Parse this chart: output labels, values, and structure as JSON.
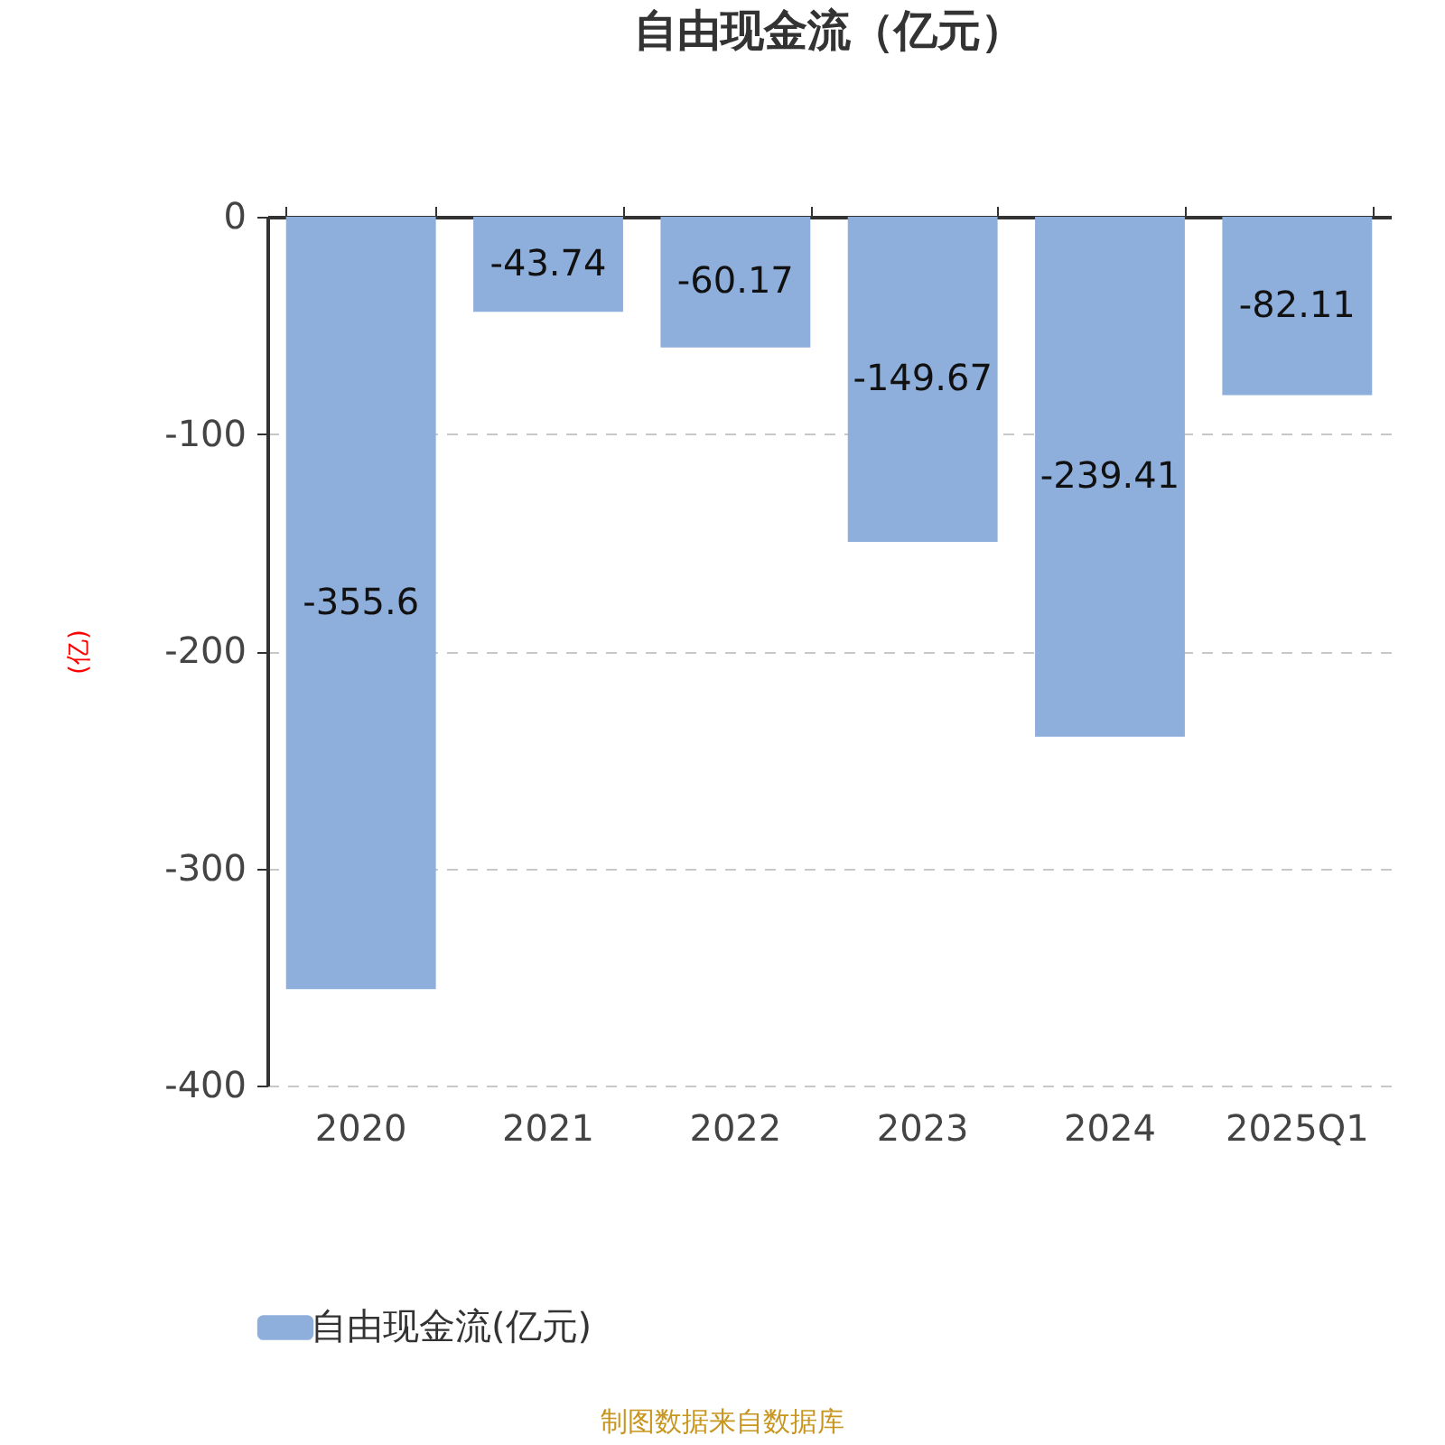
{
  "chart_data": {
    "type": "bar",
    "title": "自由现金流（亿元）",
    "ylabel": "(亿)",
    "categories": [
      "2020",
      "2021",
      "2022",
      "2023",
      "2024",
      "2025Q1"
    ],
    "series": [
      {
        "name": "自由现金流(亿元)",
        "color": "#8eaedb",
        "values": [
          -355.6,
          -43.74,
          -60.17,
          -149.67,
          -239.41,
          -82.11
        ]
      }
    ],
    "ylim": [
      -400,
      0
    ],
    "yticks": [
      -400,
      -300,
      -200,
      -100,
      0
    ],
    "grid": "y",
    "legend": "bottom",
    "data_labels": true,
    "annotations": [
      "制图数据来自数据库"
    ]
  }
}
